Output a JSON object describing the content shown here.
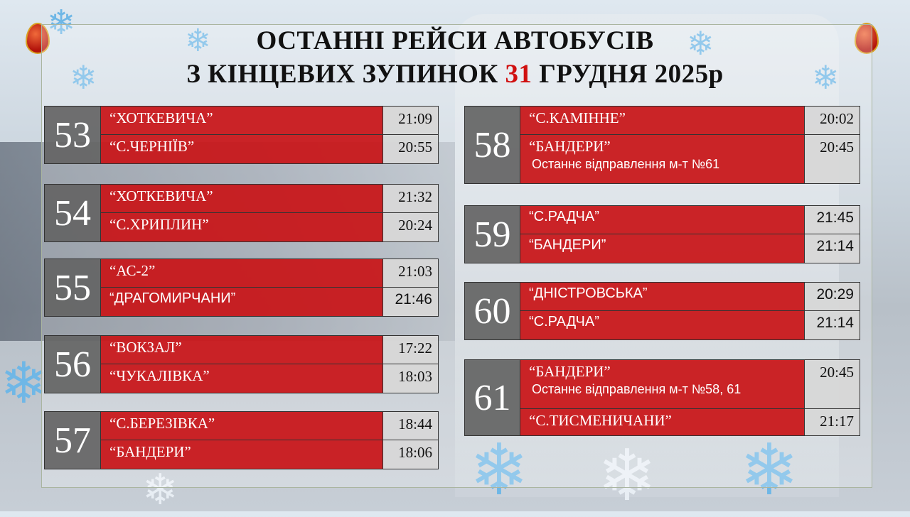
{
  "title": {
    "line1": "ОСТАННІ РЕЙСИ АВТОБУСІВ",
    "line2_prefix": "З КІНЦЕВИХ ЗУПИНОК ",
    "line2_day": "31",
    "line2_suffix": " ГРУДНЯ 2025р"
  },
  "colors": {
    "accent_red": "#c81418",
    "number_gray": "#646464",
    "time_gray": "#d7d7d7"
  },
  "routes": [
    {
      "number": "53",
      "rows": [
        {
          "stop": "“ХОТКЕВИЧА”",
          "time": "21:09"
        },
        {
          "stop": "“С.ЧЕРНІЇВ”",
          "time": "20:55"
        }
      ]
    },
    {
      "number": "54",
      "rows": [
        {
          "stop": "“ХОТКЕВИЧА”",
          "time": "21:32"
        },
        {
          "stop": "“С.ХРИПЛИН”",
          "time": "20:24"
        }
      ]
    },
    {
      "number": "55",
      "rows": [
        {
          "stop": "“АС-2”",
          "time": "21:03"
        },
        {
          "stop": "“ДРАГОМИРЧАНИ”",
          "time": "21:46"
        }
      ]
    },
    {
      "number": "56",
      "rows": [
        {
          "stop": "“ВОКЗАЛ”",
          "time": "17:22"
        },
        {
          "stop": "“ЧУКАЛІВКА”",
          "time": "18:03"
        }
      ]
    },
    {
      "number": "57",
      "rows": [
        {
          "stop": "“С.БЕРЕЗІВКА”",
          "time": "18:44"
        },
        {
          "stop": "“БАНДЕРИ”",
          "time": "18:06"
        }
      ]
    },
    {
      "number": "58",
      "rows": [
        {
          "stop": "“С.КАМІННЕ”",
          "time": "20:02"
        },
        {
          "stop": "“БАНДЕРИ”",
          "note": "Останнє відправлення  м-т №61",
          "time": "20:45"
        }
      ]
    },
    {
      "number": "59",
      "rows": [
        {
          "stop": "“С.РАДЧА”",
          "time": "21:45"
        },
        {
          "stop": "“БАНДЕРИ”",
          "time": "21:14"
        }
      ]
    },
    {
      "number": "60",
      "rows": [
        {
          "stop": "“ДНІСТРОВСЬКА”",
          "time": "20:29"
        },
        {
          "stop": "“С.РАДЧА”",
          "time": "21:14"
        }
      ]
    },
    {
      "number": "61",
      "rows": [
        {
          "stop": "“БАНДЕРИ”",
          "note": "Останнє відправлення  м-т №58, 61",
          "time": "20:45"
        },
        {
          "stop": "“С.ТИСМЕНИЧАНИ”",
          "time": "21:17"
        }
      ]
    }
  ],
  "decorations": {
    "icons": [
      "snowflake-icon",
      "easter-egg-ornament-icon"
    ]
  }
}
